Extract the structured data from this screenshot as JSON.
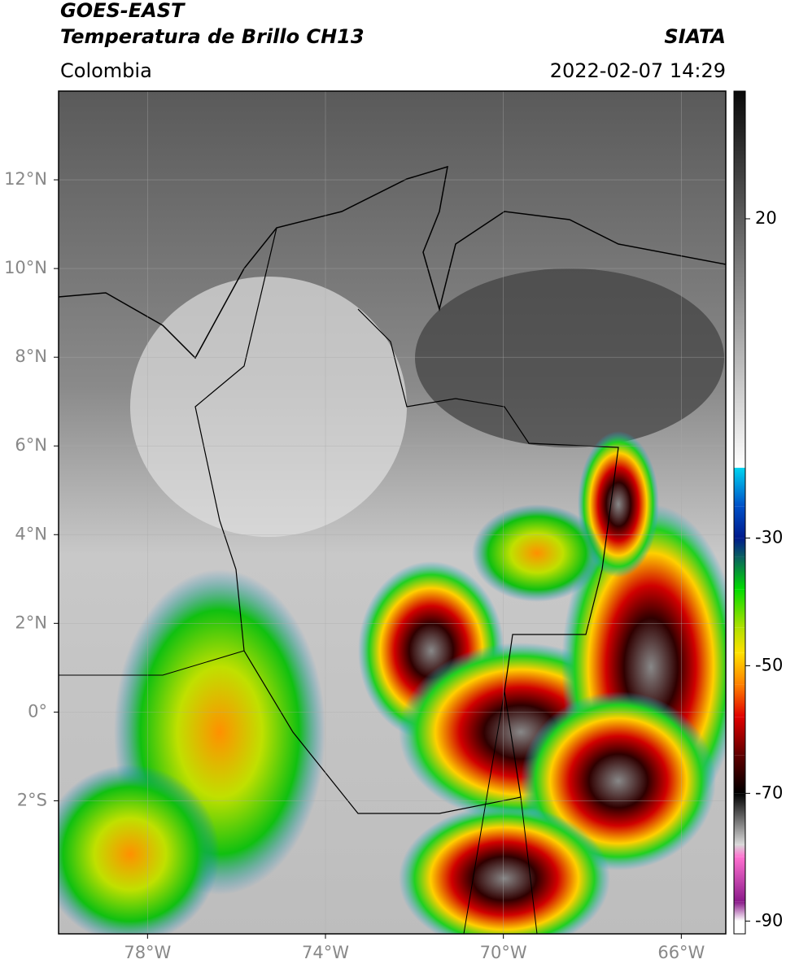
{
  "header": {
    "title": "GOES-EAST",
    "subtitle": "Temperatura de Brillo CH13",
    "region": "Colombia",
    "source": "SIATA",
    "datetime": "2022-02-07 14:29"
  },
  "map": {
    "lon_range": [
      -80,
      -65
    ],
    "lat_range": [
      -5,
      14
    ],
    "lat_ticks": [
      {
        "value": 12,
        "label": "12°N"
      },
      {
        "value": 10,
        "label": "10°N"
      },
      {
        "value": 8,
        "label": "8°N"
      },
      {
        "value": 6,
        "label": "6°N"
      },
      {
        "value": 4,
        "label": "4°N"
      },
      {
        "value": 2,
        "label": "2°N"
      },
      {
        "value": 0,
        "label": "0°"
      },
      {
        "value": -2,
        "label": "2°S"
      }
    ],
    "lon_ticks": [
      {
        "value": -78,
        "label": "78°W"
      },
      {
        "value": -74,
        "label": "74°W"
      },
      {
        "value": -70,
        "label": "70°W"
      },
      {
        "value": -66,
        "label": "66°W"
      }
    ]
  },
  "colorbar": {
    "clim": [
      -92,
      40
    ],
    "ticks": [
      20,
      -30,
      -50,
      -70,
      -90
    ],
    "stops": [
      {
        "value": 40,
        "color": "#0a0a0a"
      },
      {
        "value": -19,
        "color": "#ffffff"
      },
      {
        "value": -19,
        "color": "#00d4f0"
      },
      {
        "value": -25,
        "color": "#0050c8"
      },
      {
        "value": -30,
        "color": "#001a8c"
      },
      {
        "value": -33,
        "color": "#0a6060"
      },
      {
        "value": -38,
        "color": "#00dc00"
      },
      {
        "value": -44,
        "color": "#b0e000"
      },
      {
        "value": -48,
        "color": "#ffe000"
      },
      {
        "value": -53,
        "color": "#ff8000"
      },
      {
        "value": -58,
        "color": "#e00000"
      },
      {
        "value": -64,
        "color": "#600000"
      },
      {
        "value": -70,
        "color": "#000000"
      },
      {
        "value": -78,
        "color": "#d8d8d8"
      },
      {
        "value": -80,
        "color": "#ff70d0"
      },
      {
        "value": -87,
        "color": "#8a1a8a"
      },
      {
        "value": -90,
        "color": "#ffffff"
      }
    ]
  }
}
